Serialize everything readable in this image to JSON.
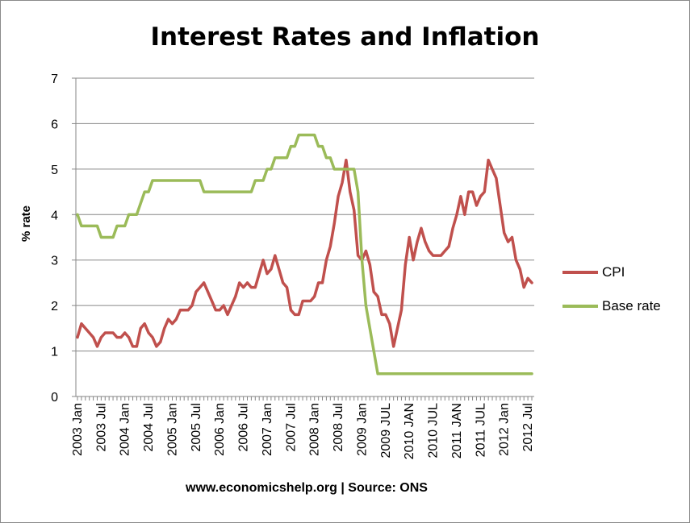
{
  "chart_data": {
    "type": "line",
    "title": "Interest Rates and Inflation",
    "xlabel": "",
    "ylabel": "% rate",
    "ylim": [
      0,
      7
    ],
    "yticks": [
      0,
      1,
      2,
      3,
      4,
      5,
      6,
      7
    ],
    "grid": true,
    "legend": "right",
    "x_tick_labels": [
      "2003 Jan",
      "2003 Jul",
      "2004 Jan",
      "2004 Jul",
      "2005 Jan",
      "2005 Jul",
      "2006 Jan",
      "2006 Jul",
      "2007 Jan",
      "2007 Jul",
      "2008 Jan",
      "2008 Jul",
      "2009 Jan",
      "2009 JUL",
      "2010 JAN",
      "2010 JUL",
      "2011 JAN",
      "2011 JUL",
      "2012 Jan",
      "2012 Jul"
    ],
    "x_start": "2003-01",
    "x_end": "2012-08",
    "series": [
      {
        "name": "CPI",
        "color": "#c0504d",
        "values": [
          1.3,
          1.6,
          1.5,
          1.4,
          1.3,
          1.1,
          1.3,
          1.4,
          1.4,
          1.4,
          1.3,
          1.3,
          1.4,
          1.3,
          1.1,
          1.1,
          1.5,
          1.6,
          1.4,
          1.3,
          1.1,
          1.2,
          1.5,
          1.7,
          1.6,
          1.7,
          1.9,
          1.9,
          1.9,
          2.0,
          2.3,
          2.4,
          2.5,
          2.3,
          2.1,
          1.9,
          1.9,
          2.0,
          1.8,
          2.0,
          2.2,
          2.5,
          2.4,
          2.5,
          2.4,
          2.4,
          2.7,
          3.0,
          2.7,
          2.8,
          3.1,
          2.8,
          2.5,
          2.4,
          1.9,
          1.8,
          1.8,
          2.1,
          2.1,
          2.1,
          2.2,
          2.5,
          2.5,
          3.0,
          3.3,
          3.8,
          4.4,
          4.7,
          5.2,
          4.5,
          4.1,
          3.1,
          3.0,
          3.2,
          2.9,
          2.3,
          2.2,
          1.8,
          1.8,
          1.6,
          1.1,
          1.5,
          1.9,
          2.9,
          3.5,
          3.0,
          3.4,
          3.7,
          3.4,
          3.2,
          3.1,
          3.1,
          3.1,
          3.2,
          3.3,
          3.7,
          4.0,
          4.4,
          4.0,
          4.5,
          4.5,
          4.2,
          4.4,
          4.5,
          5.2,
          5.0,
          4.8,
          4.2,
          3.6,
          3.4,
          3.5,
          3.0,
          2.8,
          2.4,
          2.6,
          2.5
        ]
      },
      {
        "name": "Base rate",
        "color": "#9bbb59",
        "values": [
          4.0,
          3.75,
          3.75,
          3.75,
          3.75,
          3.75,
          3.5,
          3.5,
          3.5,
          3.5,
          3.75,
          3.75,
          3.75,
          4.0,
          4.0,
          4.0,
          4.25,
          4.5,
          4.5,
          4.75,
          4.75,
          4.75,
          4.75,
          4.75,
          4.75,
          4.75,
          4.75,
          4.75,
          4.75,
          4.75,
          4.75,
          4.75,
          4.5,
          4.5,
          4.5,
          4.5,
          4.5,
          4.5,
          4.5,
          4.5,
          4.5,
          4.5,
          4.5,
          4.5,
          4.5,
          4.75,
          4.75,
          4.75,
          5.0,
          5.0,
          5.25,
          5.25,
          5.25,
          5.25,
          5.5,
          5.5,
          5.75,
          5.75,
          5.75,
          5.75,
          5.75,
          5.5,
          5.5,
          5.25,
          5.25,
          5.0,
          5.0,
          5.0,
          5.0,
          5.0,
          5.0,
          4.5,
          3.0,
          2.0,
          1.5,
          1.0,
          0.5,
          0.5,
          0.5,
          0.5,
          0.5,
          0.5,
          0.5,
          0.5,
          0.5,
          0.5,
          0.5,
          0.5,
          0.5,
          0.5,
          0.5,
          0.5,
          0.5,
          0.5,
          0.5,
          0.5,
          0.5,
          0.5,
          0.5,
          0.5,
          0.5,
          0.5,
          0.5,
          0.5,
          0.5,
          0.5,
          0.5,
          0.5,
          0.5,
          0.5,
          0.5,
          0.5,
          0.5,
          0.5,
          0.5,
          0.5
        ]
      }
    ]
  },
  "caption": "www.economicshelp.org | Source: ONS"
}
